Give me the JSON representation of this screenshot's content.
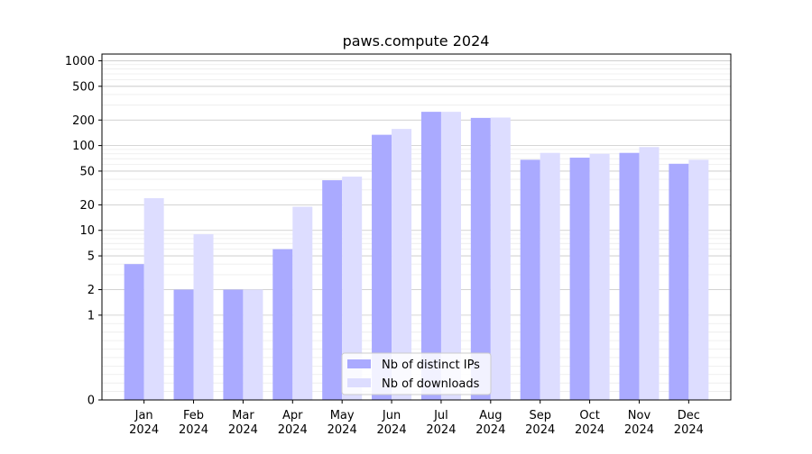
{
  "chart_data": {
    "type": "bar",
    "title": "paws.compute 2024",
    "xlabel": "",
    "ylabel": "",
    "yscale": "symlog",
    "ylim": [
      0,
      1200
    ],
    "yticks": [
      0,
      1,
      2,
      5,
      10,
      20,
      50,
      100,
      200,
      500,
      1000
    ],
    "ytick_labels": [
      "0",
      "1",
      "2",
      "5",
      "10",
      "20",
      "50",
      "100",
      "200",
      "500",
      "1000"
    ],
    "grid": true,
    "legend_position": "bottom-center",
    "categories": [
      "Jan\n2024",
      "Feb\n2024",
      "Mar\n2024",
      "Apr\n2024",
      "May\n2024",
      "Jun\n2024",
      "Jul\n2024",
      "Aug\n2024",
      "Sep\n2024",
      "Oct\n2024",
      "Nov\n2024",
      "Dec\n2024"
    ],
    "series": [
      {
        "name": "Nb of distinct IPs",
        "color": "#aaaaff",
        "values": [
          4,
          2,
          2,
          6,
          39,
          134,
          250,
          212,
          68,
          72,
          82,
          61
        ]
      },
      {
        "name": "Nb of downloads",
        "color": "#ddddff",
        "values": [
          24,
          9,
          2,
          19,
          43,
          157,
          250,
          214,
          82,
          80,
          96,
          68
        ]
      }
    ]
  }
}
